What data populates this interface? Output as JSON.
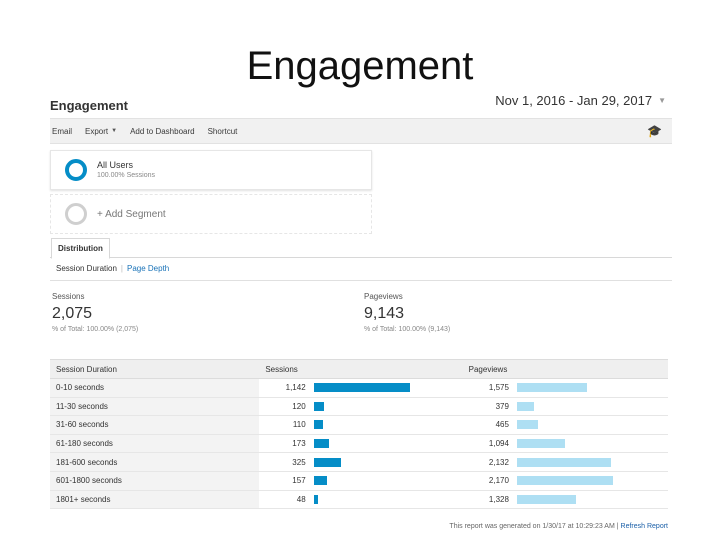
{
  "slide": {
    "title": "Engagement"
  },
  "report": {
    "title": "Engagement",
    "date_range": "Nov 1, 2016 - Jan 29, 2017",
    "colors": {
      "sessions_bar": "#058dc7",
      "pageviews_bar": "#aedff3",
      "link": "#1a73b8"
    }
  },
  "toolbar": {
    "email": "Email",
    "export": "Export",
    "add_to_dashboard": "Add to Dashboard",
    "shortcut": "Shortcut",
    "icon": "graduation-cap-icon"
  },
  "segments": {
    "all_users": {
      "name": "All Users",
      "sub": "100.00% Sessions"
    },
    "add_segment": "+ Add Segment"
  },
  "tabs": {
    "distribution": "Distribution"
  },
  "subtabs": {
    "session_duration": "Session Duration",
    "page_depth": "Page Depth"
  },
  "metrics": {
    "sessions": {
      "label": "Sessions",
      "value": "2,075",
      "sub": "% of Total: 100.00% (2,075)"
    },
    "pageviews": {
      "label": "Pageviews",
      "value": "9,143",
      "sub": "% of Total: 100.00% (9,143)"
    }
  },
  "table": {
    "headers": {
      "duration": "Session Duration",
      "sessions": "Sessions",
      "pageviews": "Pageviews"
    },
    "rows": [
      {
        "duration": "0-10 seconds",
        "sessions": "1,142",
        "pageviews": "1,575",
        "sessions_value": 1142,
        "pageviews_value": 1575
      },
      {
        "duration": "11-30 seconds",
        "sessions": "120",
        "pageviews": "379",
        "sessions_value": 120,
        "pageviews_value": 379
      },
      {
        "duration": "31-60 seconds",
        "sessions": "110",
        "pageviews": "465",
        "sessions_value": 110,
        "pageviews_value": 465
      },
      {
        "duration": "61-180 seconds",
        "sessions": "173",
        "pageviews": "1,094",
        "sessions_value": 173,
        "pageviews_value": 1094
      },
      {
        "duration": "181-600 seconds",
        "sessions": "325",
        "pageviews": "2,132",
        "sessions_value": 325,
        "pageviews_value": 2132
      },
      {
        "duration": "601-1800 seconds",
        "sessions": "157",
        "pageviews": "2,170",
        "sessions_value": 157,
        "pageviews_value": 2170
      },
      {
        "duration": "1801+ seconds",
        "sessions": "48",
        "pageviews": "1,328",
        "sessions_value": 48,
        "pageviews_value": 1328
      }
    ]
  },
  "footer": {
    "generated": "This report was generated on 1/30/17 at 10:29:23 AM",
    "refresh": "Refresh Report"
  }
}
